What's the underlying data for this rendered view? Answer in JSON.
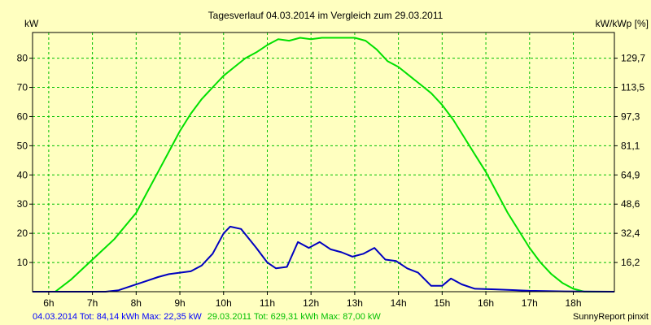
{
  "chart_data": {
    "type": "line",
    "title": "Tagesverlauf 04.03.2014 im Vergleich zum 29.03.2011",
    "ylabel_left": "kW",
    "ylabel_right": "kW/kWp [%]",
    "x_range": [
      5.63,
      18.94
    ],
    "x_ticks": [
      6,
      7,
      8,
      9,
      10,
      11,
      12,
      13,
      14,
      15,
      16,
      17,
      18
    ],
    "x_tick_labels": [
      "6h",
      "7h",
      "8h",
      "9h",
      "10h",
      "11h",
      "12h",
      "13h",
      "14h",
      "15h",
      "16h",
      "17h",
      "18h"
    ],
    "ylim": [
      0,
      88.8
    ],
    "y_ticks": [
      10,
      20,
      30,
      40,
      50,
      60,
      70,
      80
    ],
    "y_tick_labels": [
      "10",
      "20",
      "30",
      "40",
      "50",
      "60",
      "70",
      "80"
    ],
    "y2_ticks": [
      10,
      20,
      30,
      40,
      50,
      60,
      70,
      80
    ],
    "y2_tick_labels": [
      "16,2",
      "32,4",
      "48,6",
      "64,9",
      "81,1",
      "97,3",
      "113,5",
      "129,7"
    ],
    "grid": true,
    "legend_position": "bottom",
    "series": [
      {
        "name": "29.03.2011",
        "color": "#00e000",
        "x": [
          5.63,
          6.15,
          6.5,
          7.0,
          7.5,
          8.0,
          8.25,
          8.5,
          8.75,
          9.0,
          9.25,
          9.5,
          9.75,
          10.0,
          10.25,
          10.5,
          10.75,
          11.0,
          11.25,
          11.5,
          11.75,
          12.0,
          12.25,
          12.5,
          12.75,
          13.0,
          13.25,
          13.5,
          13.75,
          14.0,
          14.25,
          14.5,
          14.75,
          15.0,
          15.25,
          15.5,
          15.75,
          16.0,
          16.25,
          16.5,
          16.75,
          17.0,
          17.25,
          17.5,
          17.75,
          18.0,
          18.25,
          18.5,
          18.94
        ],
        "values": [
          0,
          0,
          4,
          11,
          18,
          27,
          34,
          41,
          48,
          55,
          61,
          66,
          70,
          74,
          77,
          80,
          82,
          84.5,
          86.5,
          86,
          87,
          86.5,
          87,
          87,
          87,
          87,
          86,
          83,
          79,
          77,
          74,
          71,
          68,
          64,
          59,
          53,
          47,
          41,
          34,
          27,
          21,
          15,
          10,
          6,
          3,
          1,
          0,
          0,
          0
        ]
      },
      {
        "name": "04.03.2014",
        "color": "#0000c0",
        "x": [
          5.63,
          7.3,
          7.6,
          7.9,
          8.2,
          8.5,
          8.75,
          9.0,
          9.25,
          9.5,
          9.75,
          10.0,
          10.15,
          10.4,
          10.75,
          11.0,
          11.2,
          11.45,
          11.7,
          11.95,
          12.2,
          12.45,
          12.7,
          12.95,
          13.2,
          13.45,
          13.7,
          13.95,
          14.2,
          14.45,
          14.75,
          15.0,
          15.2,
          15.45,
          15.75,
          16.2,
          17.0,
          17.8,
          18.94
        ],
        "values": [
          0,
          0,
          0.5,
          2,
          3.5,
          5,
          6,
          6.5,
          7,
          9,
          13,
          20,
          22.3,
          21.5,
          15,
          10,
          8,
          8.5,
          17,
          15,
          17,
          14.5,
          13.5,
          12,
          13,
          15,
          11,
          10.5,
          8,
          6.5,
          2,
          2,
          4.5,
          2.5,
          1,
          0.8,
          0.3,
          0.1,
          0
        ]
      }
    ],
    "footer": {
      "series_2014": "04.03.2014 Tot: 84,14 kWh Max: 22,35 kW",
      "series_2011": "29.03.2011 Tot: 629,31 kWh Max: 87,00 kW",
      "credit": "SunnyReport pinxit"
    }
  }
}
